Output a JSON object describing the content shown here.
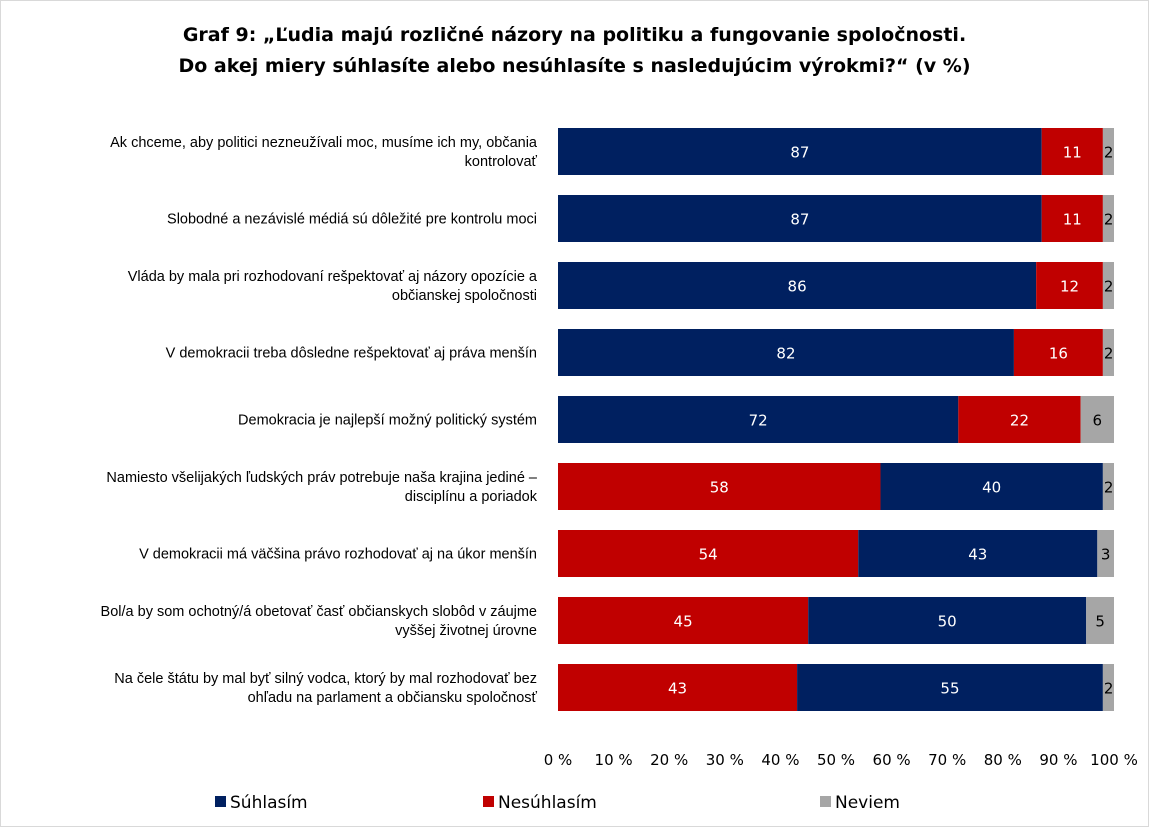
{
  "chart_data": {
    "type": "bar",
    "orientation": "horizontal",
    "stacked": true,
    "normalized": true,
    "title_lines": [
      "Graf 9: „Ľudia majú rozličné názory na politiku a fungovanie spoločnosti.",
      "Do akej miery súhlasíte alebo nesúhlasíte s nasledujúcim výrokmi?“ (v %)"
    ],
    "categories": [
      [
        "Ak chceme, aby politici nezneužívali moc, musíme ich my, občania",
        "kontrolovať"
      ],
      [
        "Slobodné a nezávislé médiá sú dôležité pre kontrolu moci"
      ],
      [
        "Vláda by mala pri rozhodovaní rešpektovať aj názory opozície a",
        "občianskej spoločnosti"
      ],
      [
        "V demokracii treba dôsledne rešpektovať aj práva menšín"
      ],
      [
        "Demokracia je najlepší možný politický systém"
      ],
      [
        "Namiesto všelijakých ľudských práv potrebuje naša krajina jediné –",
        "disciplínu a poriadok"
      ],
      [
        "V demokracii má väčšina právo rozhodovať aj na úkor menšín"
      ],
      [
        "Bol/a by som ochotný/á obetovať časť občianskych slobôd v záujme",
        "vyššej životnej úrovne"
      ],
      [
        "Na čele štátu by mal byť silný vodca, ktorý by mal rozhodovať bez",
        "ohľadu na parlament a občiansku spoločnosť"
      ]
    ],
    "series": [
      {
        "name": "Súhlasím",
        "color": "#002060",
        "values": [
          87,
          87,
          86,
          82,
          72,
          40,
          43,
          50,
          55
        ]
      },
      {
        "name": "Nesúhlasím",
        "color": "#c00000",
        "values": [
          11,
          11,
          12,
          16,
          22,
          58,
          54,
          45,
          43
        ]
      },
      {
        "name": "Neviem",
        "color": "#a6a6a6",
        "values": [
          2,
          2,
          2,
          2,
          6,
          2,
          3,
          5,
          2
        ]
      }
    ],
    "segment_order": [
      [
        "Súhlasím",
        "Nesúhlasím",
        "Neviem"
      ],
      [
        "Súhlasím",
        "Nesúhlasím",
        "Neviem"
      ],
      [
        "Súhlasím",
        "Nesúhlasím",
        "Neviem"
      ],
      [
        "Súhlasím",
        "Nesúhlasím",
        "Neviem"
      ],
      [
        "Súhlasím",
        "Nesúhlasím",
        "Neviem"
      ],
      [
        "Nesúhlasím",
        "Súhlasím",
        "Neviem"
      ],
      [
        "Nesúhlasím",
        "Súhlasím",
        "Neviem"
      ],
      [
        "Nesúhlasím",
        "Súhlasím",
        "Neviem"
      ],
      [
        "Nesúhlasím",
        "Súhlasím",
        "Neviem"
      ]
    ],
    "xlim": [
      0,
      100
    ],
    "x_ticks": [
      "0 %",
      "10 %",
      "20 %",
      "30 %",
      "40 %",
      "50 %",
      "60 %",
      "70 %",
      "80 %",
      "90 %",
      "100 %"
    ],
    "grid": false,
    "legend_position": "bottom",
    "legend": [
      "Súhlasím",
      "Nesúhlasím",
      "Neviem"
    ]
  }
}
